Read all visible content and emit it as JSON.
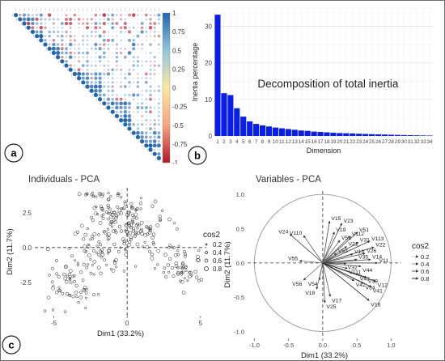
{
  "panels": {
    "a": {
      "label": "a"
    },
    "b": {
      "label": "b"
    },
    "c": {
      "label": "c"
    }
  },
  "colors": {
    "positive": "#2166ac",
    "negative": "#b2182b",
    "bar": "#0a1fe0",
    "accent_mid": "#fbe7a0"
  },
  "chart_data": [
    {
      "id": "a",
      "type": "heatmap",
      "title": "",
      "n_vars": 35,
      "colorbar": {
        "ticks": [
          1,
          0.75,
          0.5,
          0.25,
          0,
          -0.25,
          -0.5,
          -0.75,
          -1
        ],
        "tick_labels": [
          "1",
          "0.75",
          "0.5",
          "0.25",
          "0",
          "-0.25",
          "-0.5",
          "-0.75",
          "-1"
        ],
        "range": [
          -1,
          1
        ]
      }
    },
    {
      "id": "b",
      "type": "bar",
      "title": "Decomposition of total inertia",
      "xlabel": "Dimension",
      "ylabel": "Inertia percentage",
      "categories": [
        "1",
        "2",
        "3",
        "4",
        "5",
        "6",
        "7",
        "8",
        "9",
        "10",
        "11",
        "12",
        "13",
        "14",
        "15",
        "16",
        "17",
        "18",
        "19",
        "20",
        "21",
        "22",
        "23",
        "24",
        "25",
        "26",
        "27",
        "28",
        "29",
        "30",
        "31",
        "32",
        "33",
        "34"
      ],
      "values": [
        33.2,
        11.7,
        11.2,
        7.6,
        5.3,
        4.0,
        3.3,
        2.9,
        2.6,
        2.3,
        2.1,
        1.9,
        1.7,
        1.5,
        1.4,
        1.2,
        1.1,
        1.0,
        0.9,
        0.8,
        0.75,
        0.7,
        0.62,
        0.55,
        0.5,
        0.45,
        0.4,
        0.35,
        0.3,
        0.26,
        0.22,
        0.18,
        0.15,
        0.12
      ],
      "ylim": [
        0,
        35
      ],
      "yticks": [
        0,
        10,
        20,
        30
      ],
      "ytick_labels": [
        "0",
        "10",
        "20",
        "30"
      ],
      "grid": true
    },
    {
      "id": "c1",
      "type": "scatter",
      "title": "Individuals - PCA",
      "xlabel": "Dim1 (33.2%)",
      "ylabel": "Dim2 (11.7%)",
      "xlim": [
        -6.3,
        5.4
      ],
      "ylim": [
        -4.9,
        4.3
      ],
      "xticks": [
        -5,
        0,
        5
      ],
      "xtick_labels": [
        "-5",
        "0",
        "5"
      ],
      "yticks": [
        -2.5,
        0.0,
        2.5
      ],
      "ytick_labels": [
        "-2.5",
        "0.0",
        "2.5"
      ],
      "legend": {
        "title": "cos2",
        "labels": [
          "0.2",
          "0.4",
          "0.6",
          "0.8"
        ],
        "position": "right"
      },
      "point_count": 340
    },
    {
      "id": "c2",
      "type": "scatter",
      "title": "Variables - PCA",
      "xlabel": "Dim1 (33.2%)",
      "ylabel": "Dim2 (11.7%)",
      "xlim": [
        -1.1,
        1.15
      ],
      "ylim": [
        -1.1,
        1.05
      ],
      "xticks": [
        -1.0,
        -0.5,
        0.0,
        0.5,
        1.0
      ],
      "xtick_labels": [
        "-1.0",
        "-0.5",
        "0.0",
        "0.5",
        "1.0"
      ],
      "yticks": [
        -1.0,
        -0.5,
        0.0,
        0.5,
        1.0
      ],
      "ytick_labels": [
        "-1.0",
        "-0.5",
        "0.0",
        "0.5",
        "1.0"
      ],
      "legend": {
        "title": "cos2",
        "labels": [
          "0.2",
          "0.4",
          "0.6",
          "0.8"
        ],
        "position": "right"
      },
      "variables": [
        {
          "name": "V15",
          "x": 0.1,
          "y": 0.61
        },
        {
          "name": "V23",
          "x": 0.28,
          "y": 0.58
        },
        {
          "name": "V19",
          "x": 0.17,
          "y": 0.45
        },
        {
          "name": "V51",
          "x": 0.51,
          "y": 0.45
        },
        {
          "name": "V112",
          "x": 0.4,
          "y": 0.39
        },
        {
          "name": "V113",
          "x": 0.69,
          "y": 0.32
        },
        {
          "name": "V52",
          "x": 0.25,
          "y": 0.33
        },
        {
          "name": "V31",
          "x": 0.52,
          "y": 0.3
        },
        {
          "name": "V22",
          "x": 0.75,
          "y": 0.23
        },
        {
          "name": "V21",
          "x": 0.35,
          "y": 0.24
        },
        {
          "name": "V24",
          "x": -0.48,
          "y": 0.42
        },
        {
          "name": "V110",
          "x": -0.28,
          "y": 0.4
        },
        {
          "name": "V53",
          "x": 0.2,
          "y": 0.14
        },
        {
          "name": "V13",
          "x": 0.44,
          "y": 0.13
        },
        {
          "name": "V26",
          "x": 0.62,
          "y": 0.14
        },
        {
          "name": "V14",
          "x": 0.7,
          "y": 0.05
        },
        {
          "name": "V35",
          "x": 0.5,
          "y": 0.05
        },
        {
          "name": "V55",
          "x": -0.34,
          "y": 0.03
        },
        {
          "name": "V32",
          "x": 0.34,
          "y": -0.01
        },
        {
          "name": "V11",
          "x": 0.8,
          "y": 0.0
        },
        {
          "name": "V44",
          "x": 0.56,
          "y": -0.05
        },
        {
          "name": "V111",
          "x": 0.36,
          "y": -0.08
        },
        {
          "name": "V43",
          "x": 0.52,
          "y": -0.17
        },
        {
          "name": "V33",
          "x": 0.64,
          "y": -0.21
        },
        {
          "name": "V12",
          "x": 0.78,
          "y": -0.27
        },
        {
          "name": "V42",
          "x": 0.46,
          "y": -0.26
        },
        {
          "name": "V34",
          "x": 0.6,
          "y": -0.3
        },
        {
          "name": "V41",
          "x": 0.71,
          "y": -0.35
        },
        {
          "name": "V56",
          "x": -0.28,
          "y": -0.25
        },
        {
          "name": "V54",
          "x": -0.05,
          "y": -0.25
        },
        {
          "name": "V18",
          "x": -0.09,
          "y": -0.38
        },
        {
          "name": "V17",
          "x": 0.11,
          "y": -0.49
        },
        {
          "name": "V25",
          "x": 0.03,
          "y": -0.58
        },
        {
          "name": "V16",
          "x": 0.68,
          "y": -0.55
        }
      ]
    }
  ]
}
